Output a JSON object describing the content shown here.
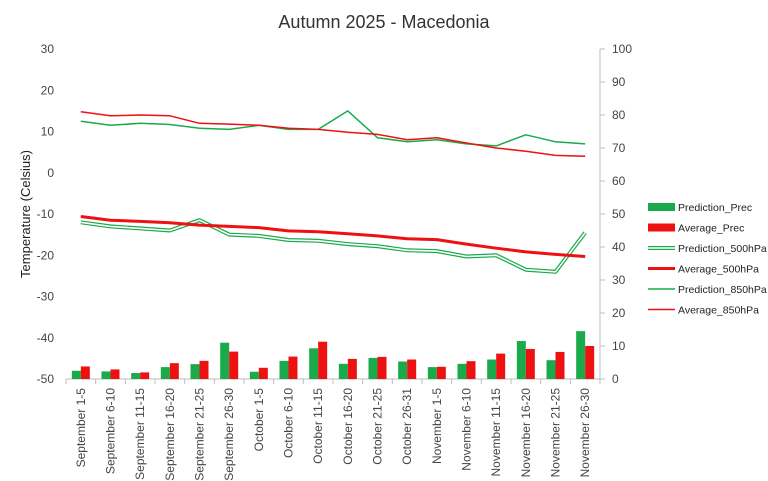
{
  "chart_data": {
    "type": "bar-line combo",
    "title": "Autumn 2025 - Macedonia",
    "ylabel": "Temperature (Celsius)",
    "ylim": [
      -50,
      30
    ],
    "ytick_labels": [
      "30",
      "20",
      "10",
      "0",
      "-10",
      "-20",
      "-30",
      "-40",
      "-50"
    ],
    "y2lim": [
      0,
      100
    ],
    "y2tick_labels": [
      "100",
      "90",
      "80",
      "70",
      "60",
      "50",
      "40",
      "30",
      "20",
      "10",
      "0"
    ],
    "grid": false,
    "legend_position": "right",
    "categories": [
      "September 1-5",
      "September 6-10",
      "September 11-15",
      "September 16-20",
      "September 21-25",
      "September 26-30",
      "October 1-5",
      "October 6-10",
      "October 11-15",
      "October 16-20",
      "October 21-25",
      "October 26-31",
      "November 1-5",
      "November 6-10",
      "November 11-15",
      "November 16-20",
      "November 21-25",
      "November 26-30"
    ],
    "bar_series": [
      {
        "name": "Prediction_Prec",
        "axis": "secondary",
        "color": "#1aaa4b",
        "values": [
          2.5,
          2.3,
          1.8,
          3.6,
          4.5,
          11,
          2.2,
          5.5,
          9.3,
          4.6,
          6.4,
          5.3,
          3.6,
          4.6,
          5.9,
          11.5,
          5.7,
          14.5
        ]
      },
      {
        "name": "Average_Prec",
        "axis": "secondary",
        "color": "#ee1111",
        "values": [
          3.8,
          2.9,
          2,
          4.8,
          5.5,
          8.3,
          3.4,
          6.8,
          11.3,
          6.1,
          6.7,
          5.9,
          3.7,
          5.4,
          7.7,
          9.1,
          8.2,
          10
        ]
      }
    ],
    "line_series": [
      {
        "name": "Prediction_500hPa",
        "axis": "primary",
        "style": "double",
        "color": "#1aaa4b",
        "values": [
          -12,
          -13,
          -13.5,
          -14,
          -11.5,
          -15,
          -15.3,
          -16.3,
          -16.5,
          -17.3,
          -17.8,
          -18.8,
          -19,
          -20.3,
          -20,
          -23.5,
          -24,
          -14.5
        ]
      },
      {
        "name": "Average_500hPa",
        "axis": "primary",
        "style": "thick",
        "color": "#ee1111",
        "values": [
          -10.6,
          -11.5,
          -11.8,
          -12.1,
          -12.7,
          -13,
          -13.3,
          -14.1,
          -14.3,
          -14.8,
          -15.3,
          -16,
          -16.2,
          -17.3,
          -18.3,
          -19.2,
          -19.8,
          -20.3
        ]
      },
      {
        "name": "Prediction_850hPa",
        "axis": "primary",
        "style": "thin",
        "color": "#1aaa4b",
        "values": [
          12.5,
          11.5,
          12,
          11.7,
          10.8,
          10.5,
          11.5,
          10.5,
          10.5,
          15,
          8.5,
          7.5,
          8,
          7,
          6.5,
          9.2,
          7.5,
          7
        ]
      },
      {
        "name": "Average_850hPa",
        "axis": "primary",
        "style": "thin",
        "color": "#ee1111",
        "values": [
          14.8,
          13.8,
          14,
          13.8,
          12,
          11.8,
          11.5,
          10.8,
          10.5,
          9.8,
          9.3,
          8,
          8.5,
          7.2,
          6,
          5.2,
          4.2,
          4
        ]
      }
    ]
  }
}
